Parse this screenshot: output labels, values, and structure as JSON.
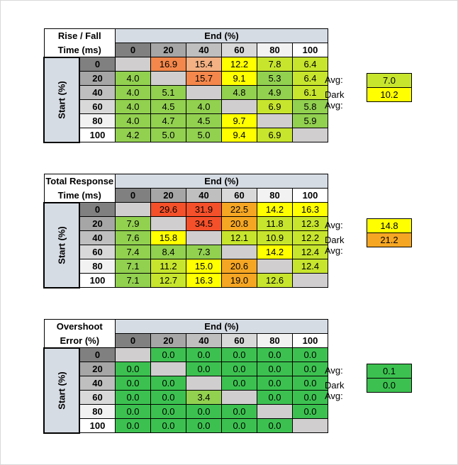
{
  "col_values": [
    "0",
    "20",
    "40",
    "60",
    "80",
    "100"
  ],
  "end_label": "End (%)",
  "start_label": "Start (%)",
  "avg_label": "Avg:",
  "dark_avg_label": "Dark Avg:",
  "tables": [
    {
      "title_line1": "Rise / Fall",
      "title_line2": "Time (ms)",
      "rows": [
        [
          "",
          "16.9",
          "15.4",
          "12.2",
          "7.8",
          "6.4"
        ],
        [
          "4.0",
          "",
          "15.7",
          "9.1",
          "5.3",
          "6.4"
        ],
        [
          "4.0",
          "5.1",
          "",
          "4.8",
          "4.9",
          "6.1"
        ],
        [
          "4.0",
          "4.5",
          "4.0",
          "",
          "6.9",
          "5.8"
        ],
        [
          "4.0",
          "4.7",
          "4.5",
          "9.7",
          "",
          "5.9"
        ],
        [
          "4.2",
          "5.0",
          "5.0",
          "9.4",
          "6.9",
          ""
        ]
      ],
      "colors": [
        [
          "#d0cece",
          "#f4874b",
          "#f4b183",
          "#ffff00",
          "#c7e52d",
          "#c7e52d"
        ],
        [
          "#92d050",
          "#d0cece",
          "#f4874b",
          "#ffff00",
          "#92d050",
          "#c7e52d"
        ],
        [
          "#92d050",
          "#92d050",
          "#d0cece",
          "#92d050",
          "#92d050",
          "#c7e52d"
        ],
        [
          "#92d050",
          "#92d050",
          "#92d050",
          "#d0cece",
          "#c7e52d",
          "#92d050"
        ],
        [
          "#92d050",
          "#92d050",
          "#92d050",
          "#ffff00",
          "#d0cece",
          "#92d050"
        ],
        [
          "#92d050",
          "#92d050",
          "#92d050",
          "#ffff00",
          "#c7e52d",
          "#d0cece"
        ]
      ],
      "avg": "7.0",
      "dark_avg": "10.2",
      "avg_color": "#c7e52d",
      "dark_avg_color": "#ffff00"
    },
    {
      "title_line1": "Total Response",
      "title_line2": "Time (ms)",
      "rows": [
        [
          "",
          "29.6",
          "31.9",
          "22.5",
          "14.2",
          "16.3"
        ],
        [
          "7.9",
          "",
          "34.5",
          "20.8",
          "11.8",
          "12.3"
        ],
        [
          "7.6",
          "15.8",
          "",
          "12.1",
          "10.9",
          "12.2"
        ],
        [
          "7.4",
          "8.4",
          "7.3",
          "",
          "14.2",
          "12.4"
        ],
        [
          "7.1",
          "11.2",
          "15.0",
          "20.6",
          "",
          "12.4"
        ],
        [
          "7.1",
          "12.7",
          "16.3",
          "19.0",
          "12.6",
          ""
        ]
      ],
      "colors": [
        [
          "#d0cece",
          "#f4502a",
          "#f4502a",
          "#f5a623",
          "#ffff00",
          "#ffff00"
        ],
        [
          "#92d050",
          "#d0cece",
          "#f4502a",
          "#f5a623",
          "#c7e52d",
          "#c7e52d"
        ],
        [
          "#92d050",
          "#ffff00",
          "#d0cece",
          "#c7e52d",
          "#c7e52d",
          "#c7e52d"
        ],
        [
          "#92d050",
          "#92d050",
          "#92d050",
          "#d0cece",
          "#ffff00",
          "#c7e52d"
        ],
        [
          "#92d050",
          "#c7e52d",
          "#ffff00",
          "#f5a623",
          "#d0cece",
          "#c7e52d"
        ],
        [
          "#92d050",
          "#c7e52d",
          "#ffff00",
          "#f5a623",
          "#c7e52d",
          "#d0cece"
        ]
      ],
      "avg": "14.8",
      "dark_avg": "21.2",
      "avg_color": "#ffff00",
      "dark_avg_color": "#f5a623"
    },
    {
      "title_line1": "Overshoot",
      "title_line2": "Error (%)",
      "rows": [
        [
          "",
          "0.0",
          "0.0",
          "0.0",
          "0.0",
          "0.0"
        ],
        [
          "0.0",
          "",
          "0.0",
          "0.0",
          "0.0",
          "0.0"
        ],
        [
          "0.0",
          "0.0",
          "",
          "0.0",
          "0.0",
          "0.0"
        ],
        [
          "0.0",
          "0.0",
          "3.4",
          "",
          "0.0",
          "0.0"
        ],
        [
          "0.0",
          "0.0",
          "0.0",
          "0.0",
          "",
          "0.0"
        ],
        [
          "0.0",
          "0.0",
          "0.0",
          "0.0",
          "0.0",
          ""
        ]
      ],
      "colors": [
        [
          "#d0cece",
          "#3cc150",
          "#3cc150",
          "#3cc150",
          "#3cc150",
          "#3cc150"
        ],
        [
          "#3cc150",
          "#d0cece",
          "#3cc150",
          "#3cc150",
          "#3cc150",
          "#3cc150"
        ],
        [
          "#3cc150",
          "#3cc150",
          "#d0cece",
          "#3cc150",
          "#3cc150",
          "#3cc150"
        ],
        [
          "#3cc150",
          "#3cc150",
          "#92d050",
          "#d0cece",
          "#3cc150",
          "#3cc150"
        ],
        [
          "#3cc150",
          "#3cc150",
          "#3cc150",
          "#3cc150",
          "#d0cece",
          "#3cc150"
        ],
        [
          "#3cc150",
          "#3cc150",
          "#3cc150",
          "#3cc150",
          "#3cc150",
          "#d0cece"
        ]
      ],
      "avg": "0.1",
      "dark_avg": "0.0",
      "avg_color": "#3cc150",
      "dark_avg_color": "#3cc150"
    }
  ],
  "header_colors": [
    "#808080",
    "#a6a6a6",
    "#bfbfbf",
    "#d9d9d9",
    "#f2f2f2",
    "#ffffff"
  ]
}
